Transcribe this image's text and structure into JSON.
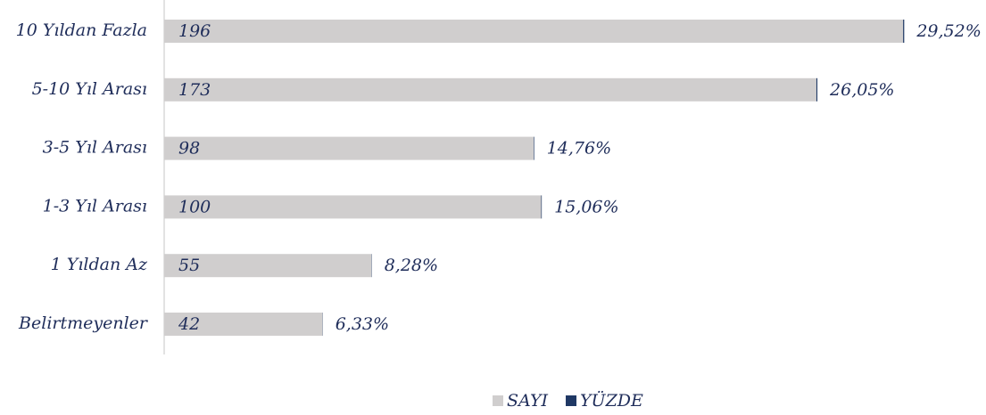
{
  "chart_data": {
    "type": "stacked_bar_horizontal",
    "categories": [
      "10 Yıldan Fazla",
      "5-10 Yıl Arası",
      "3-5 Yıl Arası",
      "1-3 Yıl Arası",
      "1 Yıldan Az",
      "Belirtmeyenler"
    ],
    "series": [
      {
        "name": "SAYI",
        "color": "#d0cece",
        "values": [
          196,
          173,
          98,
          100,
          55,
          42
        ]
      },
      {
        "name": "YÜZDE",
        "color": "#1f3864",
        "values": [
          0.2952,
          0.2605,
          0.1476,
          0.1506,
          0.0828,
          0.0633
        ],
        "value_labels": [
          "29,52%",
          "26,05%",
          "14,76%",
          "15,06%",
          "8,28%",
          "6,33%"
        ]
      }
    ],
    "xlim": [
      0,
      200
    ],
    "legend": "bottom"
  }
}
